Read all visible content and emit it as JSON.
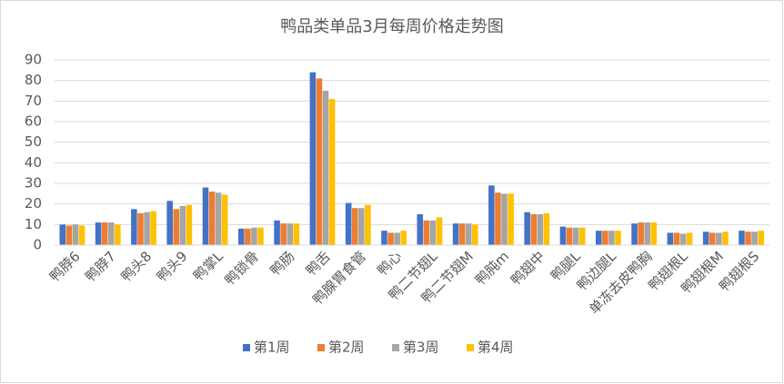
{
  "chart_data": {
    "type": "bar",
    "title": "鸭品类单品3月每周价格走势图",
    "categories": [
      "鸭脖6",
      "鸭脖7",
      "鸭头8",
      "鸭头9",
      "鸭掌L",
      "鸭锁骨",
      "鸭肠",
      "鸭舌",
      "鸭腺胃食管",
      "鸭心",
      "鸭二节翅L",
      "鸭二节翅M",
      "鸭肫m",
      "鸭翅中",
      "鸭腿L",
      "鸭边腿L",
      "单冻去皮鸭胸",
      "鸭翅根L",
      "鸭翅根M",
      "鸭翅根S"
    ],
    "series": [
      {
        "name": "第1周",
        "color": "#4472c4",
        "values": [
          10,
          11,
          17.5,
          21.5,
          28,
          8,
          12,
          84,
          20.5,
          7,
          15,
          10.5,
          29,
          16,
          9,
          7,
          10.5,
          6,
          6.5,
          7
        ]
      },
      {
        "name": "第2周",
        "color": "#ed7d31",
        "values": [
          9.5,
          11,
          15.5,
          17.5,
          26,
          8,
          10.5,
          81,
          18,
          6,
          12,
          10.5,
          25.5,
          15,
          8.5,
          7,
          11,
          6,
          6,
          6.5
        ]
      },
      {
        "name": "第3周",
        "color": "#a5a5a5",
        "values": [
          10,
          11,
          16,
          19,
          25.5,
          8.5,
          10.5,
          75,
          18,
          6,
          12,
          10.5,
          25,
          15,
          8.5,
          7,
          11,
          5.5,
          6,
          6.5
        ]
      },
      {
        "name": "第4周",
        "color": "#ffc000",
        "values": [
          9.5,
          10,
          16.5,
          19.5,
          24.5,
          8.5,
          10.5,
          71,
          19.5,
          7,
          13.5,
          10,
          25,
          15.5,
          8.5,
          7,
          11,
          6,
          6.5,
          7
        ]
      }
    ],
    "ylim": [
      0,
      90
    ],
    "yticks": [
      0,
      10,
      20,
      30,
      40,
      50,
      60,
      70,
      80,
      90
    ],
    "grid": true,
    "legend": "bottom"
  }
}
